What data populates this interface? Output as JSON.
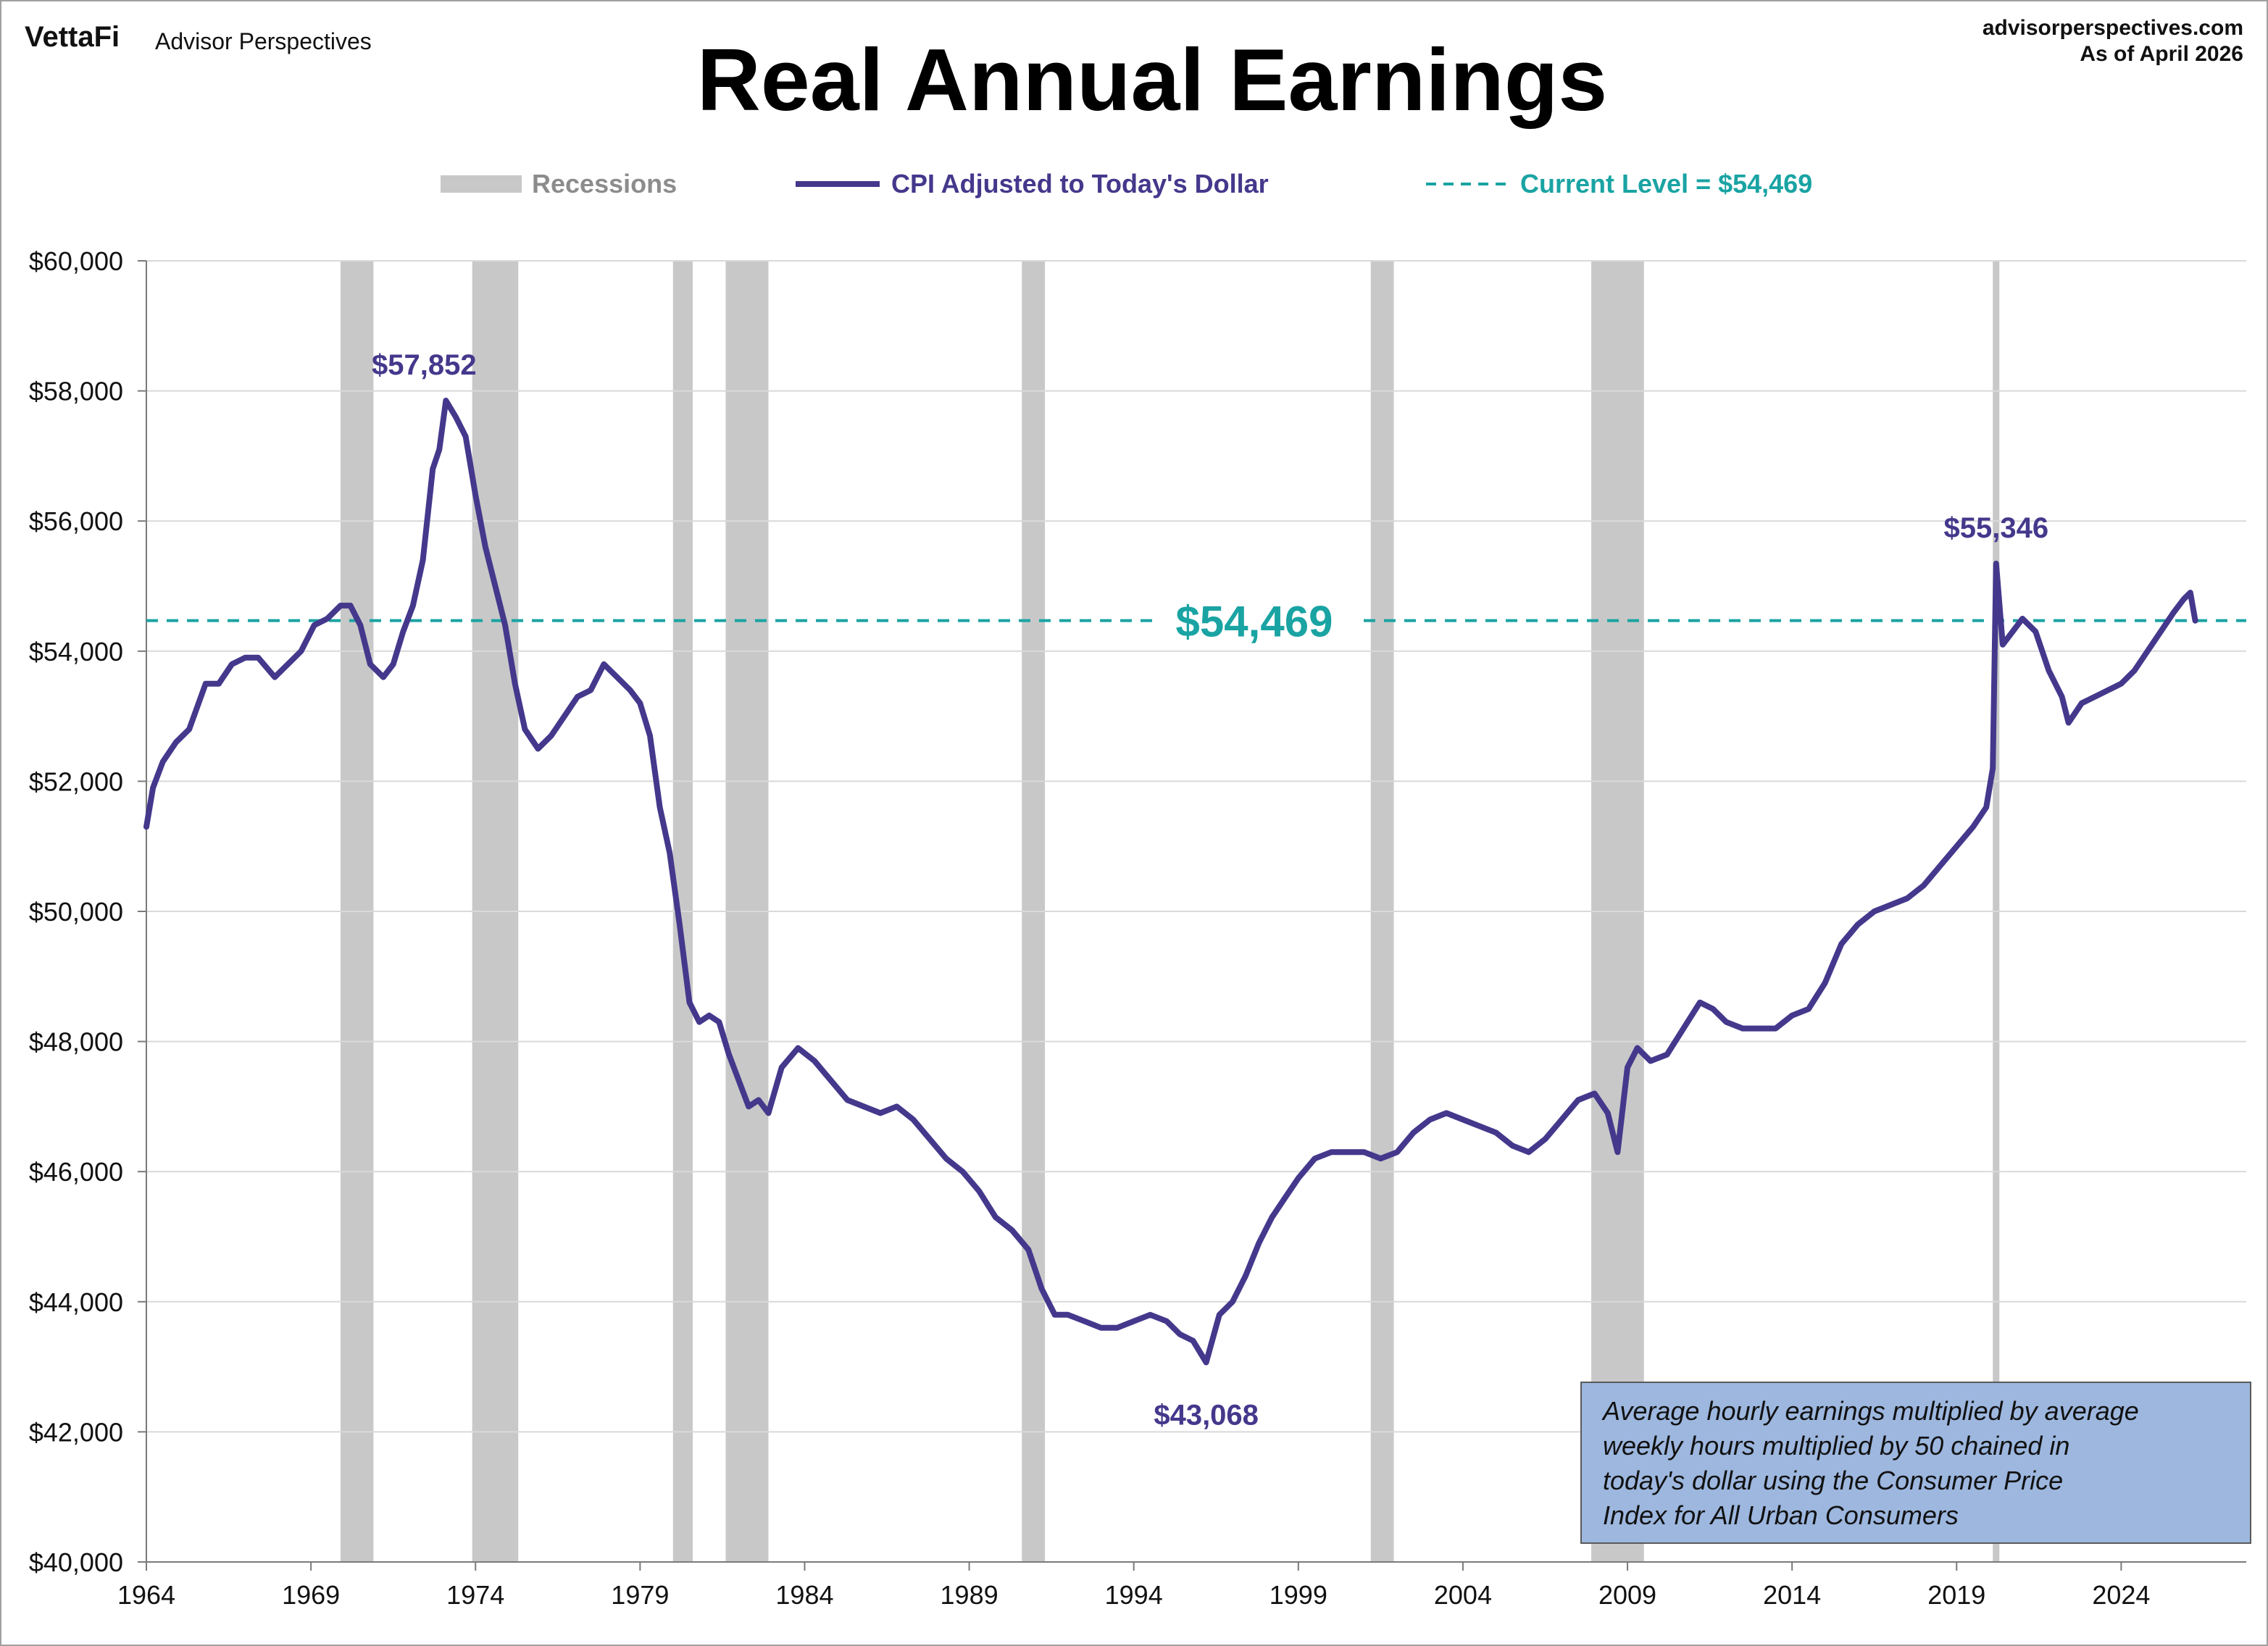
{
  "header": {
    "logo_text": "VettaFi",
    "brand_text": "Advisor Perspectives",
    "site": "advisorperspectives.com",
    "as_of": "As of April 2026"
  },
  "chart_data": {
    "type": "line",
    "title": "Real Annual Earnings",
    "legend": [
      {
        "label": "Recessions",
        "kind": "bar",
        "color": "#c8c8c8",
        "text_color": "#8c8c8c"
      },
      {
        "label": "CPI Adjusted to Today's Dollar",
        "kind": "line",
        "color": "#44388c",
        "text_color": "#44388c"
      },
      {
        "label": "Current Level = $54,469",
        "kind": "dashed",
        "color": "#1aa3a3",
        "text_color": "#1aa3a3"
      }
    ],
    "legend_position": "top-center",
    "xlim": [
      1964,
      2027.8
    ],
    "ylim": [
      40000,
      60000
    ],
    "x_ticks": [
      1964,
      1969,
      1974,
      1979,
      1984,
      1989,
      1994,
      1999,
      2004,
      2009,
      2014,
      2019,
      2024
    ],
    "x_tick_labels": [
      "1964",
      "1969",
      "1974",
      "1979",
      "1984",
      "1989",
      "1994",
      "1999",
      "2004",
      "2009",
      "2014",
      "2019",
      "2024"
    ],
    "y_ticks": [
      40000,
      42000,
      44000,
      46000,
      48000,
      50000,
      52000,
      54000,
      56000,
      58000,
      60000
    ],
    "y_tick_labels": [
      "$40,000",
      "$42,000",
      "$44,000",
      "$46,000",
      "$48,000",
      "$50,000",
      "$52,000",
      "$54,000",
      "$56,000",
      "$58,000",
      "$60,000"
    ],
    "grid": "horizontal",
    "recessions": [
      [
        1969.9,
        1970.9
      ],
      [
        1973.9,
        1975.3
      ],
      [
        1980.0,
        1980.6
      ],
      [
        1981.6,
        1982.9
      ],
      [
        1990.6,
        1991.3
      ],
      [
        2001.2,
        2001.9
      ],
      [
        2007.9,
        2009.5
      ],
      [
        2020.1,
        2020.3
      ]
    ],
    "current_level": 54469,
    "current_level_label": "$54,469",
    "annotations": [
      {
        "label": "$57,852",
        "x": 1973.1,
        "y": 57852
      },
      {
        "label": "$43,068",
        "x": 1996.2,
        "y": 43068
      },
      {
        "label": "$55,346",
        "x": 2020.2,
        "y": 55346
      }
    ],
    "series": [
      {
        "name": "CPI Adjusted to Today's Dollar",
        "color": "#44388c",
        "points": [
          [
            1964.0,
            51300
          ],
          [
            1964.2,
            51900
          ],
          [
            1964.5,
            52300
          ],
          [
            1964.9,
            52600
          ],
          [
            1965.3,
            52800
          ],
          [
            1965.8,
            53500
          ],
          [
            1966.2,
            53500
          ],
          [
            1966.6,
            53800
          ],
          [
            1967.0,
            53900
          ],
          [
            1967.4,
            53900
          ],
          [
            1967.9,
            53600
          ],
          [
            1968.3,
            53800
          ],
          [
            1968.7,
            54000
          ],
          [
            1969.1,
            54400
          ],
          [
            1969.5,
            54500
          ],
          [
            1969.9,
            54700
          ],
          [
            1970.2,
            54700
          ],
          [
            1970.5,
            54400
          ],
          [
            1970.8,
            53800
          ],
          [
            1971.2,
            53600
          ],
          [
            1971.5,
            53800
          ],
          [
            1971.8,
            54300
          ],
          [
            1972.1,
            54700
          ],
          [
            1972.4,
            55400
          ],
          [
            1972.7,
            56800
          ],
          [
            1972.9,
            57100
          ],
          [
            1973.1,
            57852
          ],
          [
            1973.4,
            57600
          ],
          [
            1973.7,
            57300
          ],
          [
            1974.0,
            56400
          ],
          [
            1974.3,
            55600
          ],
          [
            1974.6,
            55000
          ],
          [
            1974.9,
            54400
          ],
          [
            1975.2,
            53500
          ],
          [
            1975.5,
            52800
          ],
          [
            1975.9,
            52500
          ],
          [
            1976.3,
            52700
          ],
          [
            1976.7,
            53000
          ],
          [
            1977.1,
            53300
          ],
          [
            1977.5,
            53400
          ],
          [
            1977.9,
            53800
          ],
          [
            1978.3,
            53600
          ],
          [
            1978.7,
            53400
          ],
          [
            1979.0,
            53200
          ],
          [
            1979.3,
            52700
          ],
          [
            1979.6,
            51600
          ],
          [
            1979.9,
            50900
          ],
          [
            1980.2,
            49800
          ],
          [
            1980.5,
            48600
          ],
          [
            1980.8,
            48300
          ],
          [
            1981.1,
            48400
          ],
          [
            1981.4,
            48300
          ],
          [
            1981.7,
            47800
          ],
          [
            1982.0,
            47400
          ],
          [
            1982.3,
            47000
          ],
          [
            1982.6,
            47100
          ],
          [
            1982.9,
            46900
          ],
          [
            1983.3,
            47600
          ],
          [
            1983.8,
            47900
          ],
          [
            1984.3,
            47700
          ],
          [
            1984.8,
            47400
          ],
          [
            1985.3,
            47100
          ],
          [
            1985.8,
            47000
          ],
          [
            1986.3,
            46900
          ],
          [
            1986.8,
            47000
          ],
          [
            1987.3,
            46800
          ],
          [
            1987.8,
            46500
          ],
          [
            1988.3,
            46200
          ],
          [
            1988.8,
            46000
          ],
          [
            1989.3,
            45700
          ],
          [
            1989.8,
            45300
          ],
          [
            1990.3,
            45100
          ],
          [
            1990.8,
            44800
          ],
          [
            1991.2,
            44200
          ],
          [
            1991.6,
            43800
          ],
          [
            1992.0,
            43800
          ],
          [
            1992.5,
            43700
          ],
          [
            1993.0,
            43600
          ],
          [
            1993.5,
            43600
          ],
          [
            1994.0,
            43700
          ],
          [
            1994.5,
            43800
          ],
          [
            1995.0,
            43700
          ],
          [
            1995.4,
            43500
          ],
          [
            1995.8,
            43400
          ],
          [
            1996.2,
            43068
          ],
          [
            1996.6,
            43800
          ],
          [
            1997.0,
            44000
          ],
          [
            1997.4,
            44400
          ],
          [
            1997.8,
            44900
          ],
          [
            1998.2,
            45300
          ],
          [
            1998.6,
            45600
          ],
          [
            1999.0,
            45900
          ],
          [
            1999.5,
            46200
          ],
          [
            2000.0,
            46300
          ],
          [
            2000.5,
            46300
          ],
          [
            2001.0,
            46300
          ],
          [
            2001.5,
            46200
          ],
          [
            2002.0,
            46300
          ],
          [
            2002.5,
            46600
          ],
          [
            2003.0,
            46800
          ],
          [
            2003.5,
            46900
          ],
          [
            2004.0,
            46800
          ],
          [
            2004.5,
            46700
          ],
          [
            2005.0,
            46600
          ],
          [
            2005.5,
            46400
          ],
          [
            2006.0,
            46300
          ],
          [
            2006.5,
            46500
          ],
          [
            2007.0,
            46800
          ],
          [
            2007.5,
            47100
          ],
          [
            2008.0,
            47200
          ],
          [
            2008.4,
            46900
          ],
          [
            2008.7,
            46300
          ],
          [
            2009.0,
            47600
          ],
          [
            2009.3,
            47900
          ],
          [
            2009.7,
            47700
          ],
          [
            2010.2,
            47800
          ],
          [
            2010.7,
            48200
          ],
          [
            2011.2,
            48600
          ],
          [
            2011.6,
            48500
          ],
          [
            2012.0,
            48300
          ],
          [
            2012.5,
            48200
          ],
          [
            2013.0,
            48200
          ],
          [
            2013.5,
            48200
          ],
          [
            2014.0,
            48400
          ],
          [
            2014.5,
            48500
          ],
          [
            2015.0,
            48900
          ],
          [
            2015.5,
            49500
          ],
          [
            2016.0,
            49800
          ],
          [
            2016.5,
            50000
          ],
          [
            2017.0,
            50100
          ],
          [
            2017.5,
            50200
          ],
          [
            2018.0,
            50400
          ],
          [
            2018.5,
            50700
          ],
          [
            2019.0,
            51000
          ],
          [
            2019.5,
            51300
          ],
          [
            2019.9,
            51600
          ],
          [
            2020.1,
            52200
          ],
          [
            2020.2,
            55346
          ],
          [
            2020.4,
            54100
          ],
          [
            2020.7,
            54300
          ],
          [
            2021.0,
            54500
          ],
          [
            2021.4,
            54300
          ],
          [
            2021.8,
            53700
          ],
          [
            2022.2,
            53300
          ],
          [
            2022.4,
            52900
          ],
          [
            2022.8,
            53200
          ],
          [
            2023.2,
            53300
          ],
          [
            2023.6,
            53400
          ],
          [
            2024.0,
            53500
          ],
          [
            2024.4,
            53700
          ],
          [
            2024.8,
            54000
          ],
          [
            2025.2,
            54300
          ],
          [
            2025.6,
            54600
          ],
          [
            2025.9,
            54800
          ],
          [
            2026.1,
            54900
          ],
          [
            2026.25,
            54469
          ]
        ]
      }
    ],
    "note": "Average hourly earnings multiplied by average weekly hours multiplied by 50 chained in today's dollar using the  Consumer Price Index for All Urban Consumers",
    "colors": {
      "line": "#44388c",
      "current": "#1aa3a3",
      "recession": "#c8c8c8",
      "note_bg": "#9db7df",
      "grid": "#d9d9d9"
    }
  }
}
